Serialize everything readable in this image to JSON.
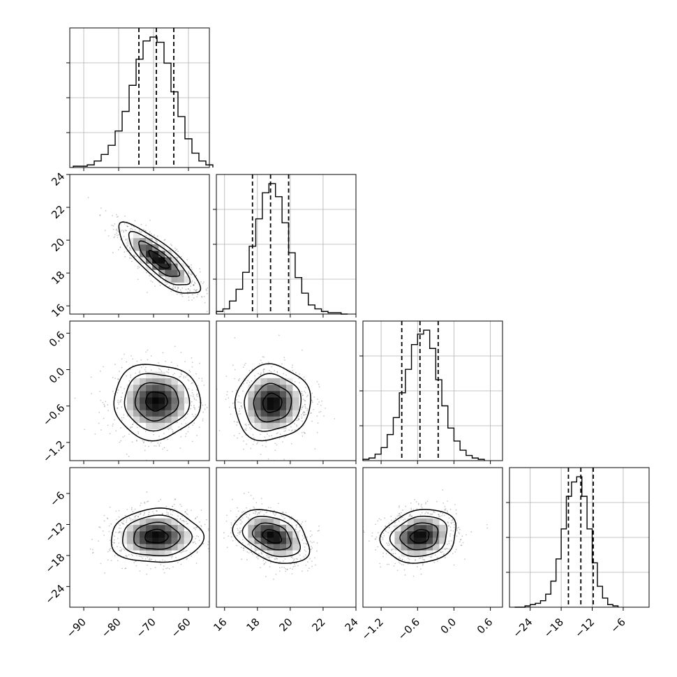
{
  "chart_data": {
    "type": "corner",
    "title": "",
    "parameters": [
      {
        "index": 0,
        "range": [
          -94,
          -54
        ],
        "ticks": [
          "−90",
          "−80",
          "−70",
          "−60"
        ],
        "quantiles": [
          -74.2,
          -69.2,
          -64.2
        ],
        "hist_peak": 1.0
      },
      {
        "index": 1,
        "range": [
          15.5,
          24
        ],
        "ticks": [
          "16",
          "18",
          "20",
          "22",
          "24"
        ],
        "quantiles": [
          17.7,
          18.8,
          19.9
        ],
        "hist_peak": 1.0
      },
      {
        "index": 2,
        "range": [
          -1.5,
          0.8
        ],
        "ticks": [
          "−1.2",
          "−0.6",
          "0.0",
          "0.6"
        ],
        "quantiles": [
          -0.86,
          -0.56,
          -0.26
        ],
        "hist_peak": 1.0
      },
      {
        "index": 3,
        "range": [
          -28,
          -1
        ],
        "ticks": [
          "−24",
          "−18",
          "−12",
          "−6"
        ],
        "quantiles": [
          -16.6,
          -14.2,
          -11.8
        ],
        "hist_peak": 1.0
      }
    ],
    "histograms": [
      {
        "param": 0,
        "x": [
          -92,
          -90,
          -88,
          -86,
          -84,
          -82,
          -80,
          -78,
          -76,
          -74,
          -72,
          -70,
          -68,
          -66,
          -64,
          -62,
          -60,
          -58,
          -56,
          -54
        ],
        "values": [
          0.01,
          0.01,
          0.02,
          0.05,
          0.1,
          0.17,
          0.28,
          0.43,
          0.63,
          0.83,
          0.97,
          1.0,
          0.96,
          0.8,
          0.58,
          0.39,
          0.22,
          0.11,
          0.05,
          0.02
        ]
      },
      {
        "param": 1,
        "x": [
          15.7,
          16.1,
          16.5,
          16.9,
          17.3,
          17.7,
          18.1,
          18.5,
          18.9,
          19.3,
          19.7,
          20.1,
          20.5,
          20.9,
          21.3,
          21.7,
          22.1,
          22.5,
          22.9,
          23.3
        ],
        "values": [
          0.02,
          0.04,
          0.1,
          0.19,
          0.32,
          0.52,
          0.73,
          0.93,
          1.0,
          0.9,
          0.7,
          0.47,
          0.28,
          0.16,
          0.07,
          0.04,
          0.02,
          0.01,
          0.01,
          0.0
        ]
      },
      {
        "param": 2,
        "x": [
          -1.45,
          -1.35,
          -1.25,
          -1.15,
          -1.05,
          -0.95,
          -0.85,
          -0.75,
          -0.65,
          -0.55,
          -0.45,
          -0.35,
          -0.25,
          -0.15,
          -0.05,
          0.05,
          0.15,
          0.25,
          0.35,
          0.45
        ],
        "values": [
          0.01,
          0.02,
          0.05,
          0.1,
          0.2,
          0.33,
          0.52,
          0.7,
          0.89,
          0.97,
          1.0,
          0.86,
          0.62,
          0.42,
          0.25,
          0.15,
          0.08,
          0.04,
          0.02,
          0.01
        ]
      },
      {
        "param": 3,
        "x": [
          -26.5,
          -25.5,
          -24.5,
          -23.5,
          -22.5,
          -21.5,
          -20.5,
          -19.5,
          -18.5,
          -17.5,
          -16.5,
          -15.5,
          -14.5,
          -13.5,
          -12.5,
          -11.5,
          -10.5,
          -9.5,
          -8.5,
          -7.5
        ],
        "values": [
          0.0,
          0.0,
          0.01,
          0.02,
          0.03,
          0.05,
          0.1,
          0.2,
          0.37,
          0.6,
          0.85,
          0.96,
          1.0,
          0.85,
          0.6,
          0.34,
          0.16,
          0.07,
          0.02,
          0.01
        ]
      }
    ],
    "pairs": [
      {
        "x_param": 0,
        "y_param": 1,
        "mean": [
          -68.5,
          18.8
        ],
        "std": [
          5.8,
          1.08
        ],
        "corr": -0.82
      },
      {
        "x_param": 0,
        "y_param": 2,
        "mean": [
          -69.2,
          -0.52
        ],
        "std": [
          6.2,
          0.31
        ],
        "corr": 0.0
      },
      {
        "x_param": 1,
        "y_param": 2,
        "mean": [
          18.9,
          -0.55
        ],
        "std": [
          1.15,
          0.31
        ],
        "corr": 0.05
      },
      {
        "x_param": 0,
        "y_param": 3,
        "mean": [
          -69.2,
          -14.3
        ],
        "std": [
          6.6,
          2.6
        ],
        "corr": 0.02
      },
      {
        "x_param": 1,
        "y_param": 3,
        "mean": [
          18.9,
          -14.3
        ],
        "std": [
          1.15,
          2.6
        ],
        "corr": -0.35
      },
      {
        "x_param": 2,
        "y_param": 3,
        "mean": [
          -0.56,
          -14.3
        ],
        "std": [
          0.31,
          2.6
        ],
        "corr": 0.15
      }
    ],
    "contour_levels_sigma": [
      0.5,
      1.0,
      1.5,
      2.0
    ],
    "grid": true,
    "style": {
      "line_color": "#000000",
      "grid_color": "#b0b0b0",
      "scatter_color": "#000000",
      "frame_color": "#000000"
    }
  }
}
